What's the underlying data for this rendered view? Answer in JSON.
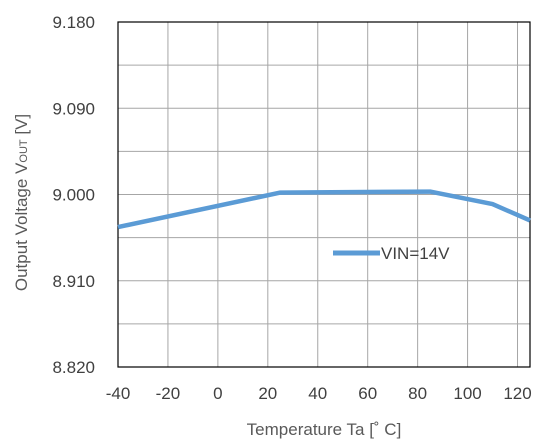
{
  "chart_data": {
    "type": "line",
    "xlabel": "Temperature  Ta [˚ C]",
    "ylabel_main": "Output  Voltage  V",
    "ylabel_sub": "OUT",
    "ylabel_unit": " [V]",
    "xlim": [
      -40,
      125
    ],
    "ylim": [
      8.82,
      9.18
    ],
    "x_ticks": [
      -40,
      -20,
      0,
      20,
      40,
      60,
      80,
      100,
      120
    ],
    "x_tick_labels": [
      "-40",
      "-20",
      "0",
      "20",
      "40",
      "60",
      "80",
      "100",
      "120"
    ],
    "y_ticks": [
      8.82,
      8.91,
      9.0,
      9.09,
      9.18
    ],
    "y_tick_labels": [
      "8.820",
      "8.910",
      "9.000",
      "9.090",
      "9.180"
    ],
    "x_grid": [
      -40,
      -20,
      0,
      20,
      40,
      60,
      80,
      100,
      120
    ],
    "y_grid": [
      8.82,
      8.865,
      8.91,
      8.955,
      9.0,
      9.045,
      9.09,
      9.135,
      9.18
    ],
    "grid": true,
    "legend_position": "center-right",
    "series": [
      {
        "name": "VIN=14V",
        "color": "#5b9bd5",
        "x": [
          -40,
          25,
          85,
          110,
          125
        ],
        "y": [
          8.966,
          9.002,
          9.003,
          8.99,
          8.973
        ]
      }
    ]
  }
}
